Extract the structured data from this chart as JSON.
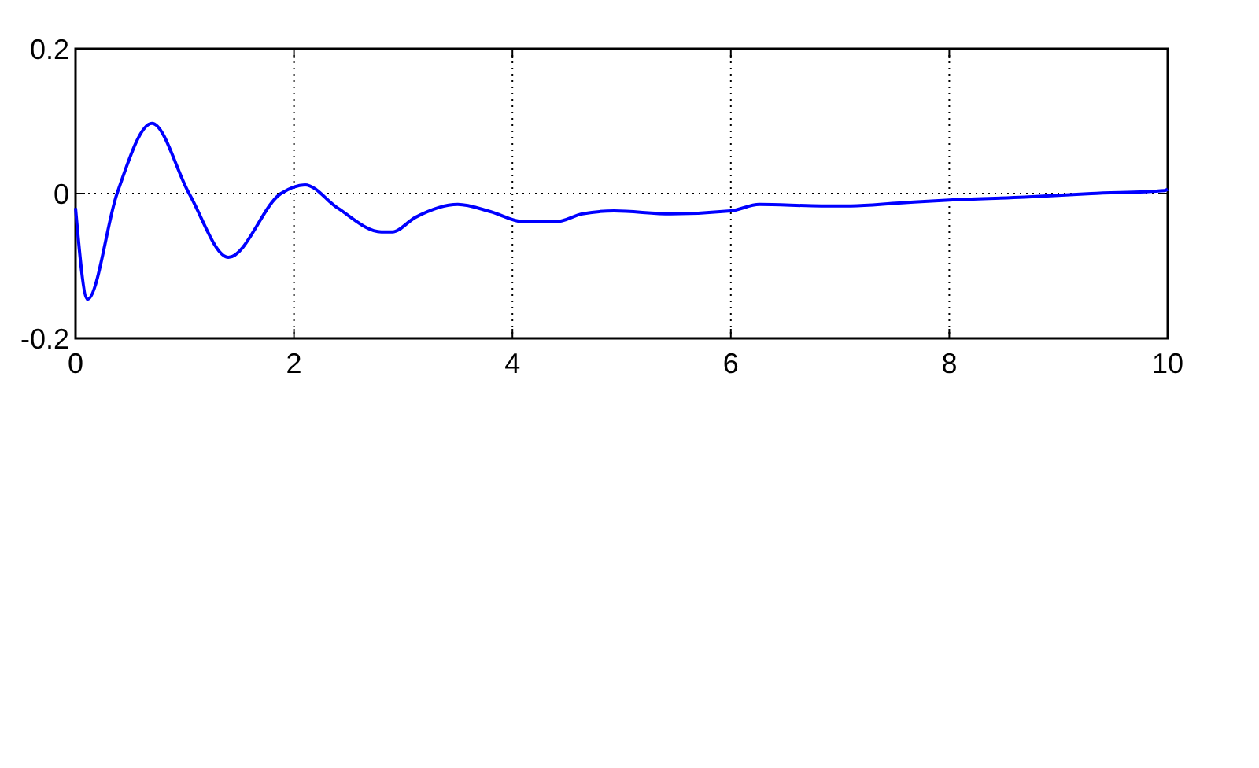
{
  "chart_data": {
    "type": "line",
    "xlim": [
      0,
      10
    ],
    "xticks": [
      0,
      2,
      4,
      6,
      8,
      10
    ],
    "ylim": [
      -0.2,
      0.2
    ],
    "yticks": [
      -0.2,
      0,
      0.2
    ],
    "grid": true,
    "marker": "none",
    "line_style": "solid",
    "series": [
      {
        "color": "#0000ff",
        "x": [
          0,
          0.11,
          0.38,
          0.7,
          1.04,
          1.4,
          1.88,
          2.1,
          2.4,
          2.8,
          2.9,
          3.11,
          3.5,
          3.8,
          4.1,
          4.4,
          4.64,
          4.93,
          5.45,
          6.0,
          6.26,
          6.83,
          7.1,
          7.54,
          8.0,
          8.69,
          9.3,
          9.97,
          10
        ],
        "values": [
          -0.02,
          -0.146,
          0,
          0.097,
          0,
          -0.088,
          0,
          0.012,
          -0.02,
          -0.053,
          -0.053,
          -0.033,
          -0.015,
          -0.025,
          -0.039,
          -0.039,
          -0.028,
          -0.024,
          -0.028,
          -0.024,
          -0.015,
          -0.017,
          -0.017,
          -0.013,
          -0.009,
          -0.005,
          0,
          0.004,
          0.006
        ]
      }
    ]
  }
}
